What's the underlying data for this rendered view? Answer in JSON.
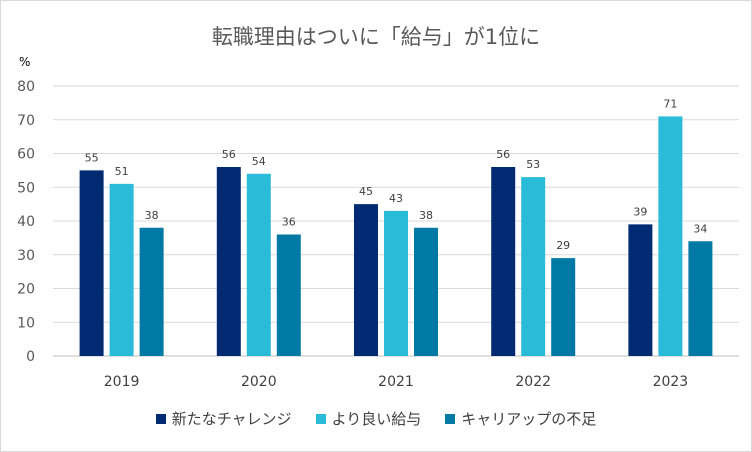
{
  "chart_data": {
    "type": "bar",
    "title": "転職理由はついに「給与」が1位に",
    "ylabel": "%",
    "xlabel": "",
    "ylim": [
      0,
      80
    ],
    "yticks": [
      0,
      10,
      20,
      30,
      40,
      50,
      60,
      70,
      80
    ],
    "grid": true,
    "legend_position": "bottom",
    "categories": [
      "2019",
      "2020",
      "2021",
      "2022",
      "2023"
    ],
    "series": [
      {
        "name": "新たなチャレンジ",
        "color": "#002b73",
        "values": [
          55,
          56,
          45,
          56,
          39
        ]
      },
      {
        "name": "より良い給与",
        "color": "#2abbd8",
        "values": [
          51,
          54,
          43,
          53,
          71
        ]
      },
      {
        "name": "キャリアップの不足",
        "color": "#007aa5",
        "values": [
          38,
          36,
          38,
          29,
          34
        ]
      }
    ]
  }
}
